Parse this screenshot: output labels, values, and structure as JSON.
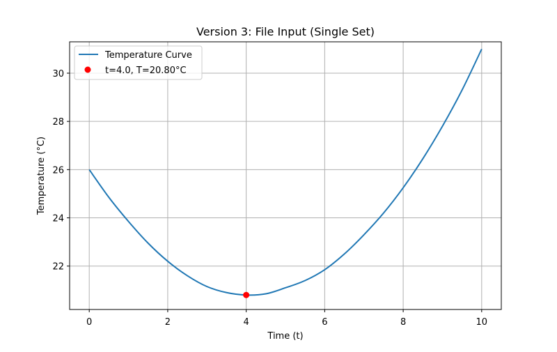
{
  "chart_data": {
    "type": "line",
    "title": "Version 3: File Input (Single Set)",
    "xlabel": "Time (t)",
    "ylabel": "Temperature (°C)",
    "xlim": [
      -0.5,
      10.5
    ],
    "ylim": [
      20.2,
      31.3
    ],
    "xticks": [
      0,
      2,
      4,
      6,
      8,
      10
    ],
    "yticks": [
      22,
      24,
      26,
      28,
      30
    ],
    "grid": true,
    "legend_position": "top-left",
    "series": [
      {
        "name": "Temperature Curve",
        "kind": "line",
        "color": "#1f77b4",
        "x": [
          0,
          0.5,
          1,
          1.5,
          2,
          2.5,
          3,
          3.5,
          4,
          4.5,
          5,
          5.5,
          6,
          6.5,
          7,
          7.5,
          8,
          8.5,
          9,
          9.5,
          10
        ],
        "y": [
          26.0,
          24.85,
          23.85,
          22.95,
          22.2,
          21.6,
          21.15,
          20.9,
          20.8,
          20.85,
          21.1,
          21.4,
          21.85,
          22.5,
          23.3,
          24.2,
          25.25,
          26.45,
          27.8,
          29.3,
          31.0
        ]
      },
      {
        "name": "t=4.0, T=20.80°C",
        "kind": "scatter",
        "color": "#ff0000",
        "x": [
          4.0
        ],
        "y": [
          20.8
        ]
      }
    ]
  }
}
